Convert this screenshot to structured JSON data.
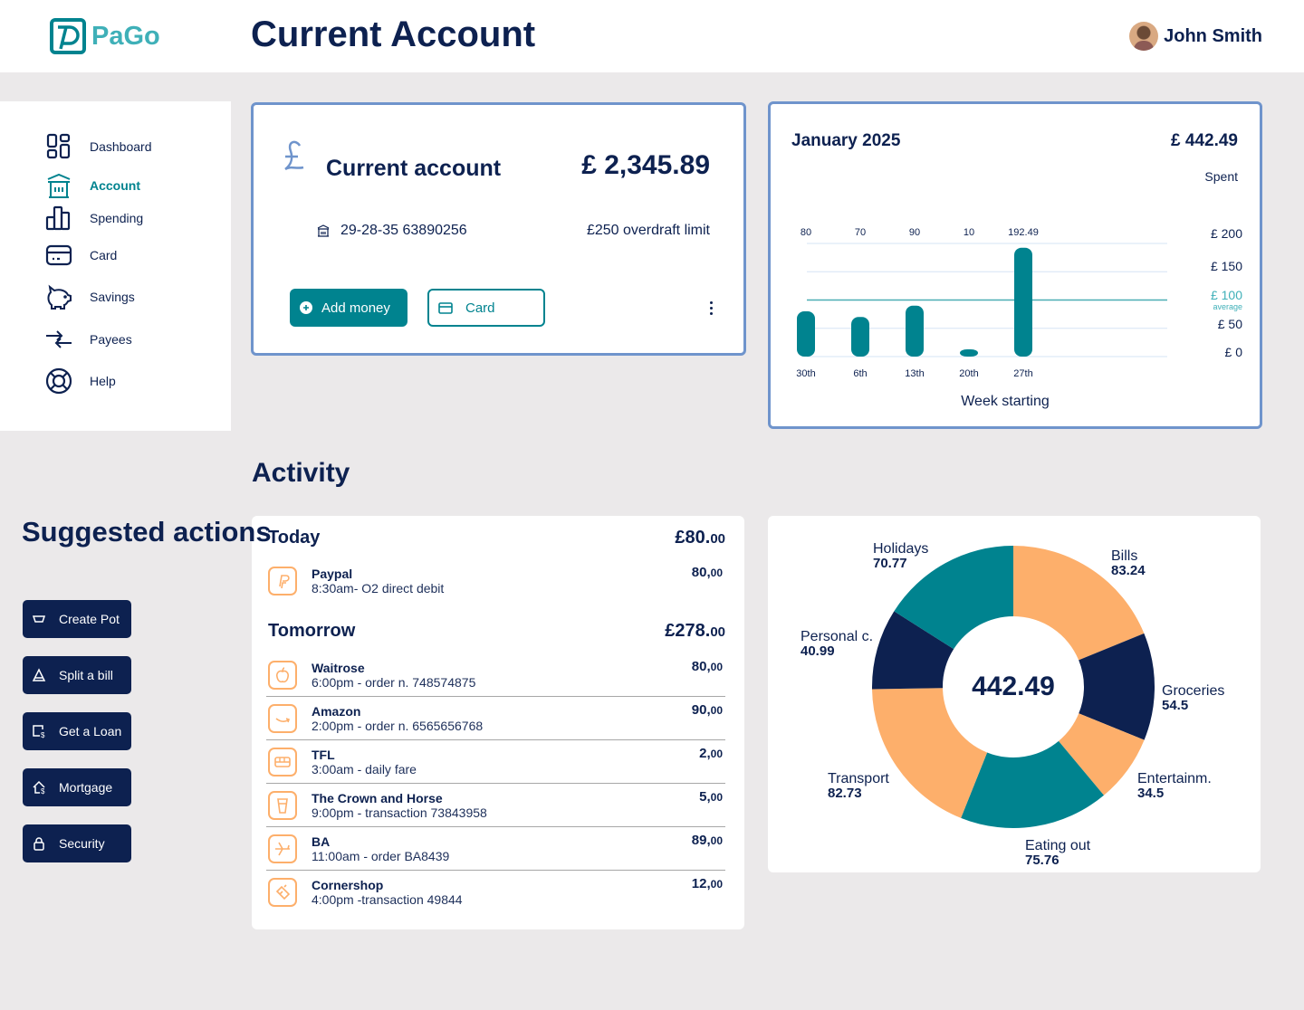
{
  "header": {
    "logo_text": "PaGo",
    "title": "Current Account",
    "user_name": "John Smith"
  },
  "sidebar": {
    "items": [
      {
        "label": "Dashboard",
        "icon": "dashboard-icon"
      },
      {
        "label": "Account",
        "icon": "bank-icon",
        "active": true
      },
      {
        "label": "Spending",
        "icon": "bar-chart-icon"
      },
      {
        "label": "Card",
        "icon": "card-icon"
      },
      {
        "label": "Savings",
        "icon": "piggy-bank-icon"
      },
      {
        "label": "Payees",
        "icon": "transfer-arrows-icon"
      },
      {
        "label": "Help",
        "icon": "lifebuoy-icon"
      }
    ]
  },
  "account": {
    "title": "Current account",
    "balance": "£ 2,345.89",
    "number": "29-28-35 63890256",
    "overdraft": "£250 overdraft limit",
    "add_money": "Add money",
    "card": "Card"
  },
  "spending": {
    "month": "January 2025",
    "total": "£ 442.49",
    "total_label": "Spent"
  },
  "activity": {
    "title": "Activity",
    "today": {
      "label": "Today",
      "total": "£80.",
      "total_dec": "00",
      "items": [
        {
          "name": "Paypal",
          "detail": "8:30am- O2 direct debit",
          "amount": "80,",
          "dec": "00",
          "icon": "paypal-icon"
        }
      ]
    },
    "tomorrow": {
      "label": "Tomorrow",
      "total": "£278.",
      "total_dec": "00",
      "items": [
        {
          "name": "Waitrose",
          "detail": "6:00pm - order n. 748574875",
          "amount": "80,",
          "dec": "00",
          "icon": "apple-icon"
        },
        {
          "name": "Amazon",
          "detail": "2:00pm - order n. 6565656768",
          "amount": "90,",
          "dec": "00",
          "icon": "amazon-icon"
        },
        {
          "name": "TFL",
          "detail": "3:00am - daily fare",
          "amount": "2,",
          "dec": "00",
          "icon": "bus-icon"
        },
        {
          "name": "The Crown and Horse",
          "detail": "9:00pm - transaction 73843958",
          "amount": "5,",
          "dec": "00",
          "icon": "drink-cup-icon"
        },
        {
          "name": "BA",
          "detail": "11:00am - order BA8439",
          "amount": "89,",
          "dec": "00",
          "icon": "plane-icon"
        },
        {
          "name": "Cornershop",
          "detail": "4:00pm -transaction 49844",
          "amount": "12,",
          "dec": "00",
          "icon": "shopping-icon"
        }
      ]
    }
  },
  "suggested": {
    "title": "Suggested actions",
    "buttons": [
      {
        "label": "Create Pot",
        "icon": "pot-icon"
      },
      {
        "label": "Split a bill",
        "icon": "pizza-slice-icon"
      },
      {
        "label": "Get a Loan",
        "icon": "loan-icon"
      },
      {
        "label": "Mortgage",
        "icon": "house-icon"
      },
      {
        "label": "Security",
        "icon": "lock-icon"
      }
    ]
  },
  "colors": {
    "navy": "#0d2150",
    "teal": "#00838f",
    "orange": "#fdaf6b",
    "border": "#6f94cc",
    "background": "#ebe9ea"
  },
  "chart_data": [
    {
      "type": "bar",
      "xlabel": "Week starting",
      "categories": [
        "30th",
        "6th",
        "13th",
        "20th",
        "27th"
      ],
      "values": [
        80,
        70,
        90,
        10,
        192.49
      ],
      "value_labels": [
        "80",
        "70",
        "90",
        "10",
        "192.49"
      ],
      "y_ticks": [
        "£ 200",
        "£ 150",
        "£ 100",
        "£ 50",
        "£ 0"
      ],
      "y_tick_values": [
        200,
        150,
        100,
        50,
        0
      ],
      "ylim": [
        0,
        200
      ],
      "average": {
        "value": 100,
        "label": "average"
      },
      "grid": true
    },
    {
      "type": "pie",
      "donut": true,
      "center_label": "442.49",
      "slices": [
        {
          "label": "Bills",
          "value": 83.24,
          "display": "83.24",
          "color": "#fdaf6b"
        },
        {
          "label": "Groceries",
          "value": 54.5,
          "display": "54.5",
          "color": "#0d2150"
        },
        {
          "label": "Entertainm.",
          "value": 34.5,
          "display": "34.5",
          "color": "#fdaf6b"
        },
        {
          "label": "Eating out",
          "value": 75.76,
          "display": "75.76",
          "color": "#00838f"
        },
        {
          "label": "Transport",
          "value": 82.73,
          "display": "82.73",
          "color": "#fdaf6b"
        },
        {
          "label": "Personal c.",
          "value": 40.99,
          "display": "40.99",
          "color": "#0d2150"
        },
        {
          "label": "Holidays",
          "value": 70.77,
          "display": "70.77",
          "color": "#00838f"
        }
      ]
    }
  ]
}
